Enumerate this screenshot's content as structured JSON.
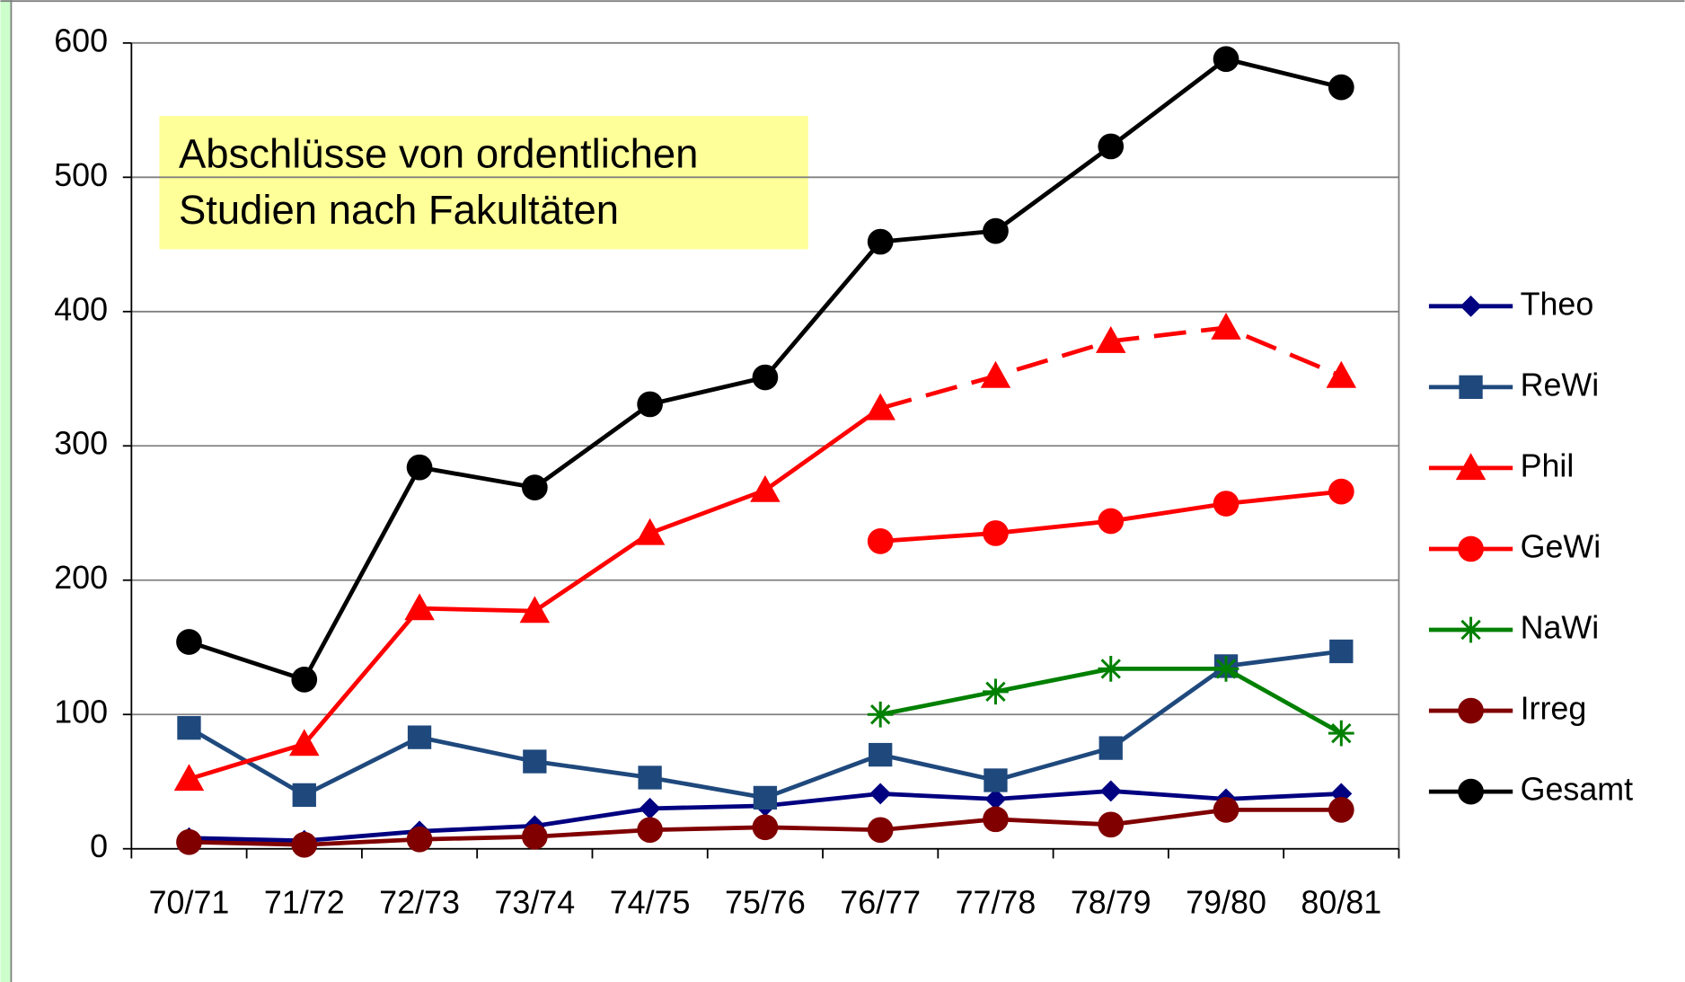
{
  "chart_data": {
    "type": "line",
    "annotation": [
      "Abschlüsse von ordentlichen",
      "Studien nach Fakultäten"
    ],
    "categories": [
      "70/71",
      "71/72",
      "72/73",
      "73/74",
      "74/75",
      "75/76",
      "76/77",
      "77/78",
      "78/79",
      "79/80",
      "80/81"
    ],
    "ylim": [
      0,
      600
    ],
    "yticks": [
      0,
      100,
      200,
      300,
      400,
      500,
      600
    ],
    "grid": true,
    "legend": "right",
    "series": [
      {
        "name": "Theo",
        "color": "#000080",
        "marker": "diamond",
        "values": [
          8,
          6,
          13,
          17,
          30,
          32,
          41,
          37,
          43,
          37,
          41
        ]
      },
      {
        "name": "ReWi",
        "color": "#1f497d",
        "marker": "square",
        "values": [
          90,
          40,
          83,
          65,
          53,
          38,
          70,
          51,
          75,
          136,
          147
        ]
      },
      {
        "name": "Phil",
        "color": "#ff0000",
        "marker": "triangle",
        "dashed_from_index": 6,
        "values": [
          52,
          78,
          179,
          177,
          235,
          267,
          328,
          352,
          378,
          388,
          352
        ]
      },
      {
        "name": "GeWi",
        "color": "#ff0000",
        "marker": "circle",
        "values": [
          null,
          null,
          null,
          null,
          null,
          null,
          229,
          235,
          244,
          257,
          266
        ]
      },
      {
        "name": "NaWi",
        "color": "#008000",
        "marker": "star",
        "values": [
          null,
          null,
          null,
          null,
          null,
          null,
          100,
          117,
          134,
          134,
          86
        ]
      },
      {
        "name": "Irreg",
        "color": "#800000",
        "marker": "circle",
        "values": [
          5,
          3,
          7,
          9,
          14,
          16,
          14,
          22,
          18,
          29,
          29
        ]
      },
      {
        "name": "Gesamt",
        "color": "#000000",
        "marker": "circle",
        "values": [
          154,
          126,
          284,
          269,
          331,
          351,
          452,
          460,
          523,
          588,
          567
        ]
      }
    ]
  }
}
